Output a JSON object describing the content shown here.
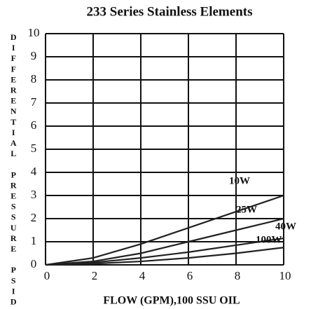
{
  "chart_data": {
    "type": "line",
    "title": "233 Series Stainless Elements",
    "x_label": "FLOW (GPM),100 SSU OIL",
    "y_label": "DIFFERENTIAL PRESSURE PSID",
    "x": [
      0,
      2,
      4,
      6,
      8,
      10
    ],
    "series": [
      {
        "name": "10W",
        "color": "#222222",
        "values": [
          0,
          0.3,
          0.9,
          1.6,
          2.3,
          3.0
        ]
      },
      {
        "name": "25W",
        "color": "#222222",
        "values": [
          0,
          0.15,
          0.5,
          1.0,
          1.5,
          2.0
        ]
      },
      {
        "name": "40W",
        "color": "#222222",
        "values": [
          0,
          0.1,
          0.3,
          0.55,
          0.85,
          1.15
        ]
      },
      {
        "name": "100W",
        "color": "#222222",
        "values": [
          0,
          0.05,
          0.15,
          0.3,
          0.5,
          0.75
        ]
      }
    ],
    "xlim": [
      0,
      10
    ],
    "xticks": [
      0,
      2,
      4,
      6,
      8,
      10
    ],
    "ylim": [
      0,
      10
    ],
    "yticks": [
      0,
      1,
      2,
      3,
      4,
      5,
      6,
      7,
      8,
      9,
      10
    ],
    "grid": true
  }
}
